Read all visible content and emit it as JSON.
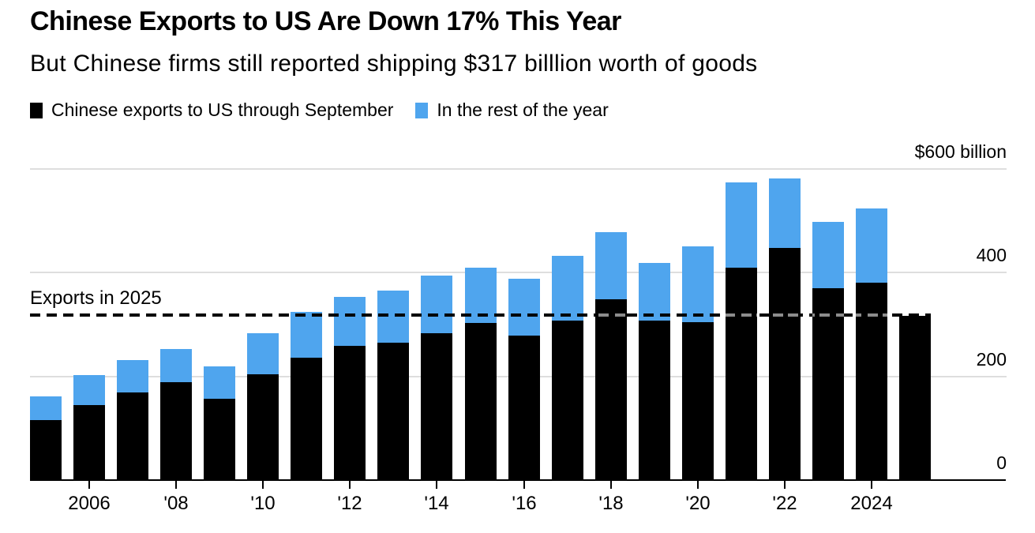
{
  "header": {
    "title": "Chinese Exports to US Are Down 17% This Year",
    "subtitle": "But Chinese firms still reported shipping $317 billlion worth of goods"
  },
  "legend": {
    "items": [
      {
        "label": "Chinese exports to US through September",
        "color": "#000000"
      },
      {
        "label": "In the rest of the year",
        "color": "#4FA5EE"
      }
    ]
  },
  "colors": {
    "black_series": "#000000",
    "blue_series": "#4FA5EE",
    "gridline": "#dedede",
    "axis": "#000000",
    "dash_on_white": "#000000",
    "dash_on_black": "#8c8c8c",
    "background": "#ffffff"
  },
  "chart_data": {
    "type": "bar",
    "stacked": true,
    "title": "Chinese Exports to US Are Down 17% This Year",
    "subtitle": "But Chinese firms still reported shipping $317 billlion worth of goods",
    "unit": "USD billions",
    "categories": [
      2005,
      2006,
      2007,
      2008,
      2009,
      2010,
      2011,
      2012,
      2013,
      2014,
      2015,
      2016,
      2017,
      2018,
      2019,
      2020,
      2021,
      2022,
      2023,
      2024,
      2025
    ],
    "series": [
      {
        "name": "Chinese exports to US through September",
        "color": "#000000",
        "values": [
          116,
          145,
          169,
          188,
          157,
          204,
          236,
          258,
          265,
          283,
          303,
          279,
          307,
          349,
          307,
          305,
          410,
          447,
          370,
          381,
          317
        ]
      },
      {
        "name": "In the rest of the year",
        "color": "#4FA5EE",
        "values": [
          46,
          58,
          63,
          64,
          63,
          79,
          89,
          94,
          101,
          111,
          106,
          109,
          125,
          130,
          111,
          146,
          165,
          134,
          128,
          143,
          0
        ]
      }
    ],
    "reference_line": {
      "label": "Exports in 2025",
      "value": 317.5,
      "style": "dashed"
    },
    "y_axis": {
      "side": "right",
      "min": 0,
      "max": 600,
      "grid": true,
      "ticks": [
        0,
        200,
        400,
        600
      ],
      "tick_labels": [
        "0",
        "200",
        "400",
        "$600 billion"
      ]
    },
    "x_axis": {
      "ticks": [
        {
          "year": 2006,
          "label": "2006"
        },
        {
          "year": 2008,
          "label": "'08"
        },
        {
          "year": 2010,
          "label": "'10"
        },
        {
          "year": 2012,
          "label": "'12"
        },
        {
          "year": 2014,
          "label": "'14"
        },
        {
          "year": 2016,
          "label": "'16"
        },
        {
          "year": 2018,
          "label": "'18"
        },
        {
          "year": 2020,
          "label": "'20"
        },
        {
          "year": 2022,
          "label": "'22"
        },
        {
          "year": 2024,
          "label": "2024"
        }
      ]
    },
    "legend_position": "top"
  }
}
